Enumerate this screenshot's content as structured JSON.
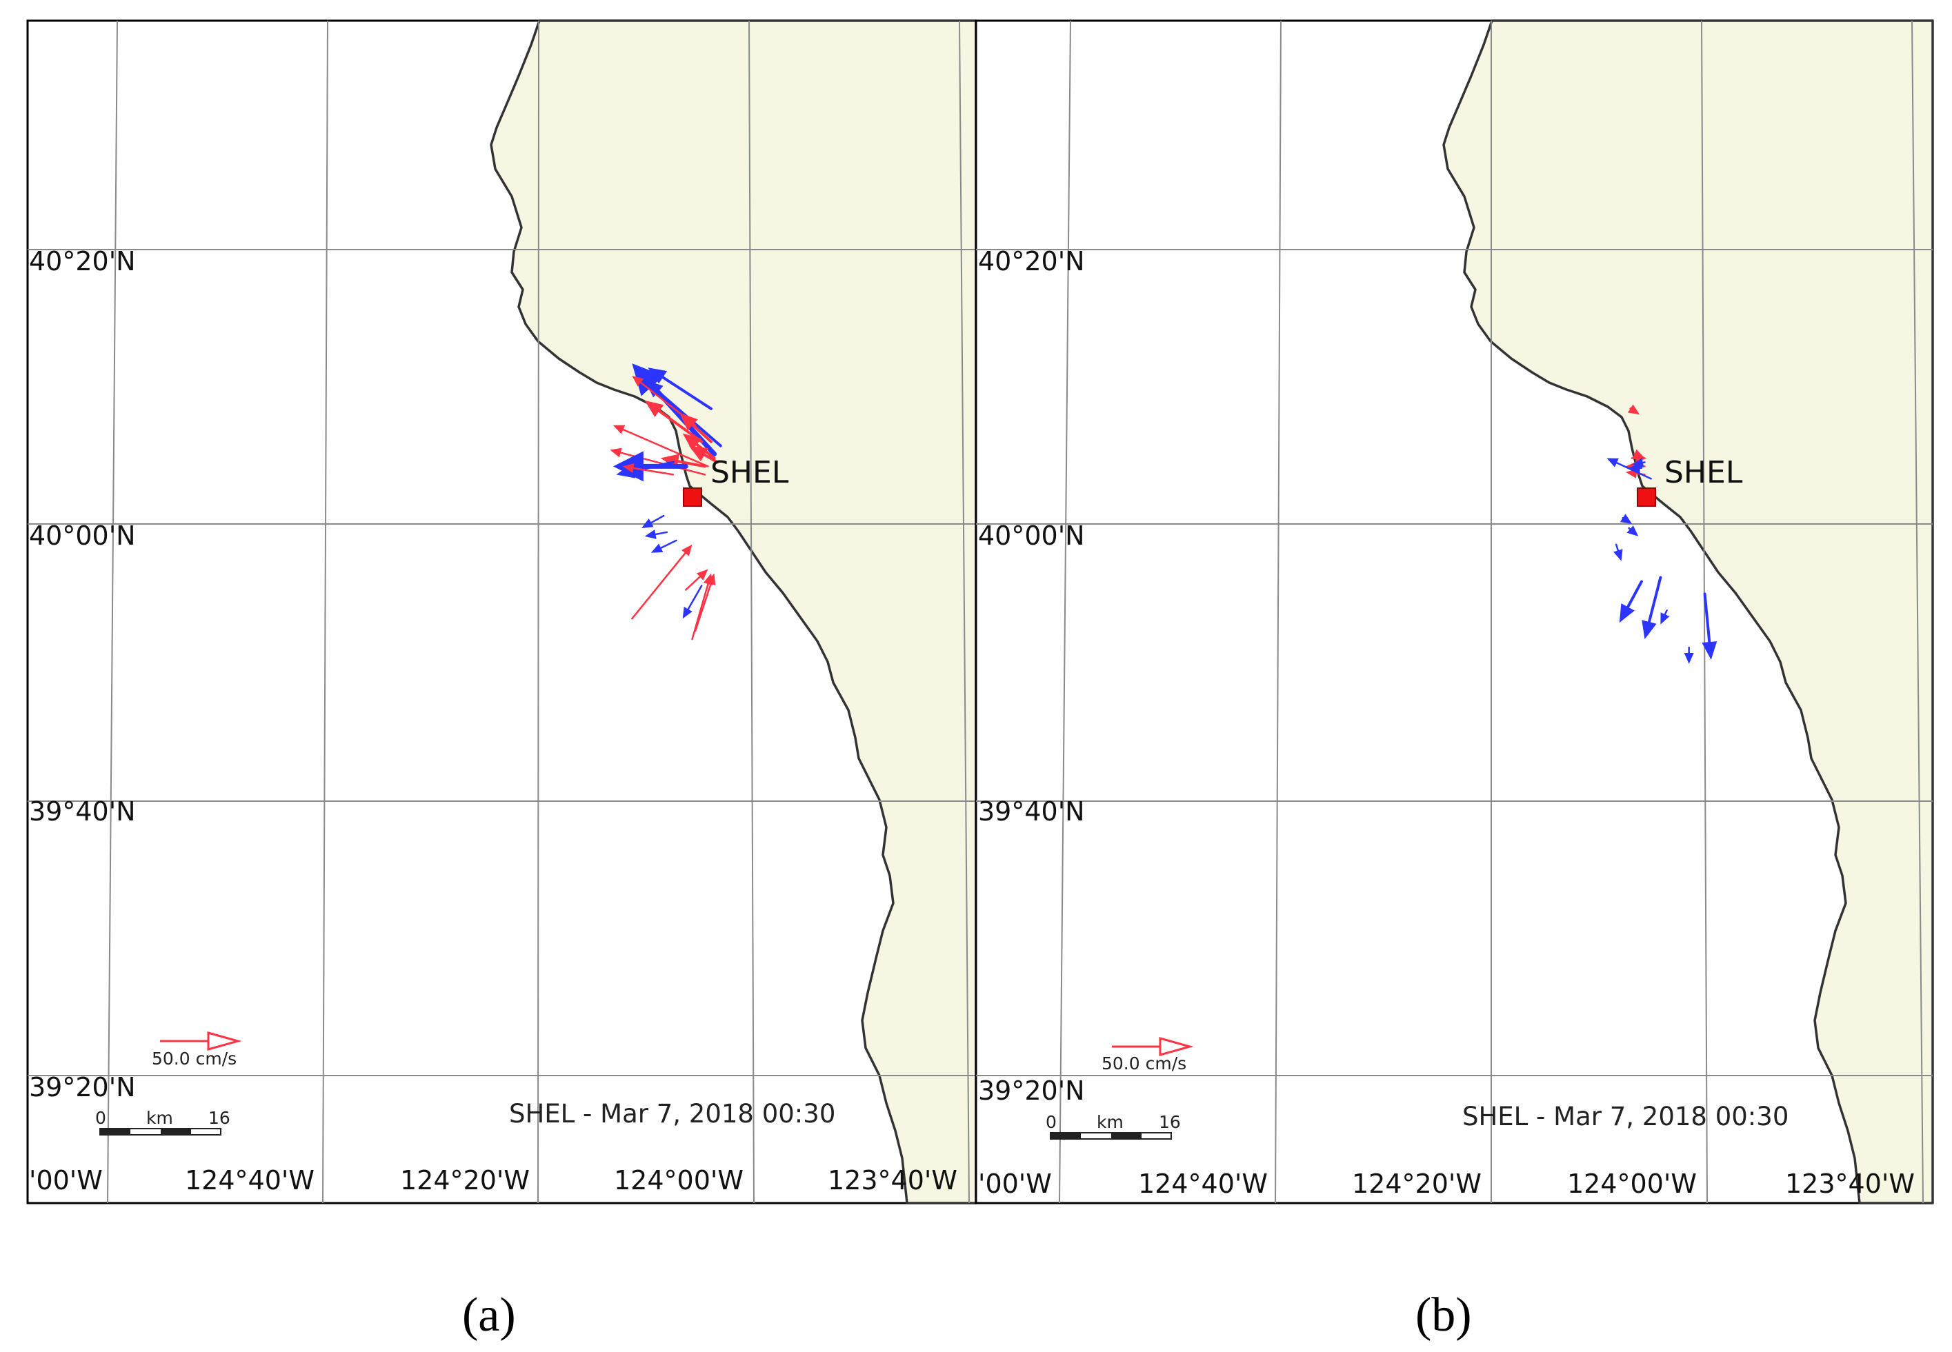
{
  "panels": [
    {
      "id": "a",
      "caption": "(a)",
      "lat_labels": [
        "40°20'N",
        "40°00'N",
        "39°40'N",
        "39°20'N"
      ],
      "lon_labels": [
        "'00'W",
        "124°40'W",
        "124°20'W",
        "124°00'W",
        "123°40'W"
      ],
      "station": "SHEL",
      "timestamp": "SHEL - Mar 7, 2018 00:30",
      "legend_speed": "50.0 cm/s",
      "scale": {
        "start": "0",
        "unit": "km",
        "end": "16"
      },
      "vectors": [
        {
          "color": "blue",
          "from": [
            -124.055,
            40.085
          ],
          "to": [
            -124.185,
            40.195
          ],
          "weight": "thick"
        },
        {
          "color": "blue",
          "from": [
            -124.045,
            40.095
          ],
          "to": [
            -124.165,
            40.175
          ],
          "weight": "medium"
        },
        {
          "color": "blue",
          "from": [
            -124.06,
            40.14
          ],
          "to": [
            -124.16,
            40.19
          ],
          "weight": "medium"
        },
        {
          "color": "red",
          "from": [
            -124.085,
            40.12
          ],
          "to": [
            -124.185,
            40.18
          ],
          "weight": "thin"
        },
        {
          "color": "red",
          "from": [
            -124.075,
            40.1
          ],
          "to": [
            -124.165,
            40.15
          ],
          "weight": "medium"
        },
        {
          "color": "red",
          "from": [
            -124.065,
            40.07
          ],
          "to": [
            -124.215,
            40.12
          ],
          "weight": "thin"
        },
        {
          "color": "red",
          "from": [
            -124.07,
            40.06
          ],
          "to": [
            -124.22,
            40.09
          ],
          "weight": "thin"
        },
        {
          "color": "red",
          "from": [
            -124.06,
            40.1
          ],
          "to": [
            -124.11,
            40.135
          ],
          "weight": "medium"
        },
        {
          "color": "red",
          "from": [
            -124.055,
            40.08
          ],
          "to": [
            -124.105,
            40.11
          ],
          "weight": "medium"
        },
        {
          "color": "red",
          "from": [
            -124.05,
            40.075
          ],
          "to": [
            -124.095,
            40.095
          ],
          "weight": "medium"
        },
        {
          "color": "red",
          "from": [
            -124.07,
            40.07
          ],
          "to": [
            -124.14,
            40.08
          ],
          "weight": "medium"
        },
        {
          "color": "blue",
          "from": [
            -124.1,
            40.07
          ],
          "to": [
            -124.215,
            40.07
          ],
          "weight": "thick"
        },
        {
          "color": "blue",
          "from": [
            -124.12,
            40.075
          ],
          "to": [
            -124.21,
            40.06
          ],
          "weight": "medium"
        },
        {
          "color": "red",
          "from": [
            -124.12,
            40.06
          ],
          "to": [
            -124.2,
            40.07
          ],
          "weight": "thin"
        },
        {
          "color": "blue",
          "from": [
            -124.135,
            40.01
          ],
          "to": [
            -124.17,
            39.995
          ],
          "weight": "thin"
        },
        {
          "color": "blue",
          "from": [
            -124.13,
            39.99
          ],
          "to": [
            -124.165,
            39.985
          ],
          "weight": "thin"
        },
        {
          "color": "blue",
          "from": [
            -124.115,
            39.98
          ],
          "to": [
            -124.155,
            39.965
          ],
          "weight": "thin"
        },
        {
          "color": "red",
          "from": [
            -124.185,
            39.885
          ],
          "to": [
            -124.09,
            39.975
          ],
          "weight": "thin"
        },
        {
          "color": "red",
          "from": [
            -124.1,
            39.92
          ],
          "to": [
            -124.065,
            39.945
          ],
          "weight": "thin"
        },
        {
          "color": "red",
          "from": [
            -124.09,
            39.86
          ],
          "to": [
            -124.06,
            39.94
          ],
          "weight": "thin"
        },
        {
          "color": "red",
          "from": [
            -124.085,
            39.87
          ],
          "to": [
            -124.055,
            39.94
          ],
          "weight": "thin"
        },
        {
          "color": "blue",
          "from": [
            -124.075,
            39.925
          ],
          "to": [
            -124.105,
            39.885
          ],
          "weight": "thin"
        }
      ]
    },
    {
      "id": "b",
      "caption": "(b)",
      "lat_labels": [
        "40°20'N",
        "40°00'N",
        "39°40'N",
        "39°20'N"
      ],
      "lon_labels": [
        "'00'W",
        "124°40'W",
        "124°20'W",
        "124°00'W",
        "123°40'W"
      ],
      "station": "SHEL",
      "timestamp": "SHEL - Mar 7, 2018 00:30",
      "legend_speed": "50.0 cm/s",
      "scale": {
        "start": "0",
        "unit": "km",
        "end": "16"
      },
      "vectors": [
        {
          "color": "red",
          "from": [
            -124.105,
            40.085
          ],
          "to": [
            -124.09,
            40.08
          ],
          "weight": "thin"
        },
        {
          "color": "red",
          "from": [
            -124.09,
            40.07
          ],
          "to": [
            -124.12,
            40.07
          ],
          "weight": "thin"
        },
        {
          "color": "red",
          "from": [
            -124.09,
            40.06
          ],
          "to": [
            -124.12,
            40.063
          ],
          "weight": "thin"
        },
        {
          "color": "red",
          "from": [
            -124.11,
            40.08
          ],
          "to": [
            -124.087,
            40.08
          ],
          "weight": "thin"
        },
        {
          "color": "blue",
          "from": [
            -124.08,
            40.055
          ],
          "to": [
            -124.15,
            40.08
          ],
          "weight": "thin"
        },
        {
          "color": "blue",
          "from": [
            -124.09,
            40.075
          ],
          "to": [
            -124.11,
            40.072
          ],
          "weight": "thin"
        },
        {
          "color": "blue",
          "from": [
            -124.095,
            40.068
          ],
          "to": [
            -124.115,
            40.068
          ],
          "weight": "thin"
        },
        {
          "color": "red",
          "from": [
            -124.108,
            40.138
          ],
          "to": [
            -124.098,
            40.133
          ],
          "weight": "thin"
        },
        {
          "color": "blue",
          "from": [
            -124.12,
            40.005
          ],
          "to": [
            -124.11,
            40.0
          ],
          "weight": "thin"
        },
        {
          "color": "blue",
          "from": [
            -124.115,
            39.995
          ],
          "to": [
            -124.1,
            39.985
          ],
          "weight": "thin"
        },
        {
          "color": "blue",
          "from": [
            -124.135,
            39.975
          ],
          "to": [
            -124.127,
            39.955
          ],
          "weight": "thin"
        },
        {
          "color": "blue",
          "from": [
            -124.095,
            39.93
          ],
          "to": [
            -124.13,
            39.88
          ],
          "weight": "medium"
        },
        {
          "color": "blue",
          "from": [
            -124.065,
            39.935
          ],
          "to": [
            -124.09,
            39.86
          ],
          "weight": "medium"
        },
        {
          "color": "blue",
          "from": [
            -124.055,
            39.895
          ],
          "to": [
            -124.065,
            39.878
          ],
          "weight": "thin"
        },
        {
          "color": "blue",
          "from": [
            -124.02,
            39.85
          ],
          "to": [
            -124.02,
            39.83
          ],
          "weight": "thin"
        },
        {
          "color": "blue",
          "from": [
            -123.995,
            39.915
          ],
          "to": [
            -123.985,
            39.835
          ],
          "weight": "medium"
        }
      ]
    }
  ],
  "colors": {
    "land": "#f6f6e2",
    "coastline": "#333333",
    "grid": "#8a8a8a",
    "red_vector": "#ff3344",
    "blue_vector": "#2b35ff",
    "station_marker": "#ee1111"
  }
}
